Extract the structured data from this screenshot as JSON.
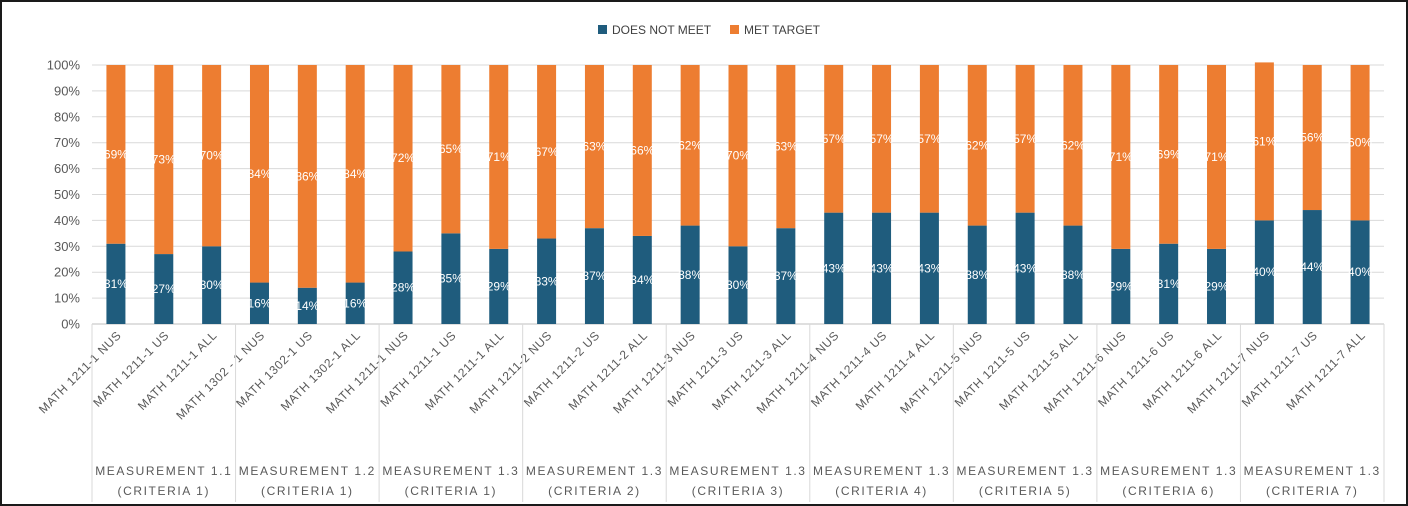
{
  "chart_data": {
    "type": "bar",
    "stacked": true,
    "percent": true,
    "colors": {
      "DOES NOT MEET": "#1f5c7d",
      "MET TARGET": "#ed7d31"
    },
    "legend": {
      "position": "top",
      "items": [
        "DOES NOT MEET",
        "MET TARGET"
      ]
    },
    "yticks": [
      "0%",
      "10%",
      "20%",
      "30%",
      "40%",
      "50%",
      "60%",
      "70%",
      "80%",
      "90%",
      "100%"
    ],
    "ylim": [
      0,
      100
    ],
    "grid": true,
    "categories": [
      "MATH 1211-1 NUS",
      "MATH 1211-1 US",
      "MATH 1211-1 ALL",
      "MATH 1302 - 1 NUS",
      "MATH 1302-1 US",
      "MATH 1302-1 ALL",
      "MATH 1211-1 NUS",
      "MATH 1211-1 US",
      "MATH 1211-1 ALL",
      "MATH 1211-2 NUS",
      "MATH 1211-2 US",
      "MATH 1211-2 ALL",
      "MATH 1211-3 NUS",
      "MATH 1211-3 US",
      "MATH 1211-3 ALL",
      "MATH 1211-4 NUS",
      "MATH 1211-4 US",
      "MATH 1211-4 ALL",
      "MATH 1211-5 NUS",
      "MATH 1211-5 US",
      "MATH 1211-5 ALL",
      "MATH 1211-6 NUS",
      "MATH 1211-6 US",
      "MATH 1211-6 ALL",
      "MATH 1211-7 NUS",
      "MATH 1211-7 US",
      "MATH 1211-7 ALL"
    ],
    "groups": [
      {
        "line1": "MEASUREMENT 1.1",
        "line2": "(CRITERIA 1)"
      },
      {
        "line1": "MEASUREMENT 1.2",
        "line2": "(CRITERIA 1)"
      },
      {
        "line1": "MEASUREMENT 1.3",
        "line2": "(CRITERIA 1)"
      },
      {
        "line1": "MEASUREMENT 1.3",
        "line2": "(CRITERIA 2)"
      },
      {
        "line1": "MEASUREMENT 1.3",
        "line2": "(CRITERIA 3)"
      },
      {
        "line1": "MEASUREMENT 1.3",
        "line2": "(CRITERIA 4)"
      },
      {
        "line1": "MEASUREMENT 1.3",
        "line2": "(CRITERIA 5)"
      },
      {
        "line1": "MEASUREMENT 1.3",
        "line2": "(CRITERIA 6)"
      },
      {
        "line1": "MEASUREMENT 1.3",
        "line2": "(CRITERIA 7)"
      }
    ],
    "series": [
      {
        "name": "DOES NOT MEET",
        "values": [
          31,
          27,
          30,
          16,
          14,
          16,
          28,
          35,
          29,
          33,
          37,
          34,
          38,
          30,
          37,
          43,
          43,
          43,
          38,
          43,
          38,
          29,
          31,
          29,
          40,
          44,
          40
        ]
      },
      {
        "name": "MET TARGET",
        "values": [
          69,
          73,
          70,
          84,
          86,
          84,
          72,
          65,
          71,
          67,
          63,
          66,
          62,
          70,
          63,
          57,
          57,
          57,
          62,
          57,
          62,
          71,
          69,
          71,
          61,
          56,
          60
        ]
      }
    ]
  }
}
